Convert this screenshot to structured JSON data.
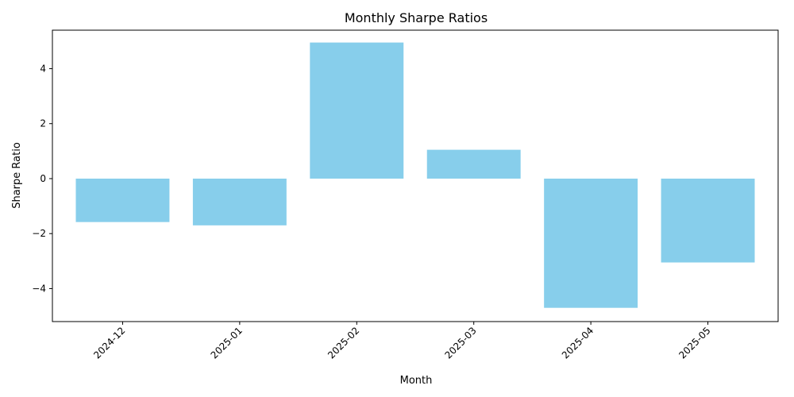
{
  "chart_data": {
    "type": "bar",
    "title": "Monthly Sharpe Ratios",
    "xlabel": "Month",
    "ylabel": "Sharpe Ratio",
    "categories": [
      "2024-12",
      "2025-01",
      "2025-02",
      "2025-03",
      "2025-04",
      "2025-05"
    ],
    "values": [
      -1.58,
      -1.7,
      4.95,
      1.05,
      -4.7,
      -3.05
    ],
    "ylim": [
      -5.2,
      5.4
    ],
    "yticks": [
      -4,
      -2,
      0,
      2,
      4
    ],
    "ytick_labels": [
      "−4",
      "−2",
      "0",
      "2",
      "4"
    ],
    "grid": false,
    "bar_color": "#87ceeb",
    "xtick_rotation": 45
  }
}
